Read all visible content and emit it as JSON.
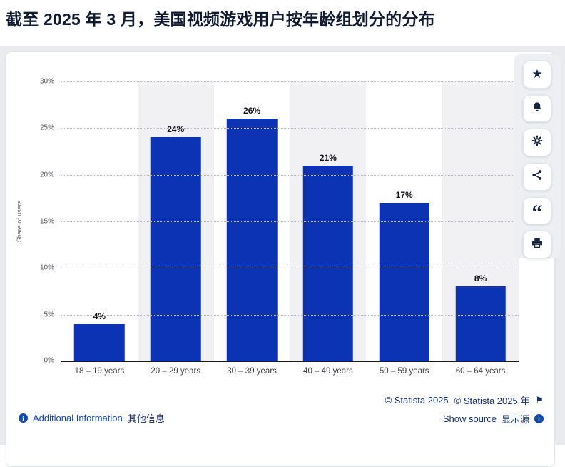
{
  "page": {
    "title": "截至 2025 年 3 月，美国视频游戏用户按年龄组划分的分布"
  },
  "chart_data": {
    "type": "bar",
    "title": "截至 2025 年 3 月，美国视频游戏用户按年龄组划分的分布",
    "categories": [
      "18 – 19 years",
      "20 – 29 years",
      "30 – 39 years",
      "40 – 49 years",
      "50 – 59 years",
      "60 – 64 years"
    ],
    "values": [
      4,
      24,
      26,
      21,
      17,
      8
    ],
    "value_labels": [
      "4%",
      "24%",
      "26%",
      "21%",
      "17%",
      "8%"
    ],
    "xlabel": "",
    "ylabel": "Share of users",
    "ylim": [
      0,
      30
    ],
    "ytick_labels": [
      "0%",
      "5%",
      "10%",
      "15%",
      "20%",
      "25%",
      "30%"
    ],
    "grid": "horizontal-dotted",
    "legend": "none",
    "bar_color": "#0d33b5",
    "band_color": "#f1f1f4"
  },
  "toolbar": {
    "buttons": [
      {
        "name": "favorite-button",
        "icon": "star-icon"
      },
      {
        "name": "notification-button",
        "icon": "bell-icon"
      },
      {
        "name": "settings-button",
        "icon": "gear-icon"
      },
      {
        "name": "share-button",
        "icon": "share-icon"
      },
      {
        "name": "cite-button",
        "icon": "quote-icon"
      },
      {
        "name": "print-button",
        "icon": "print-icon"
      }
    ]
  },
  "footer": {
    "additional_info_en": "Additional Information",
    "additional_info_zh": "其他信息",
    "copyright_en": "© Statista 2025",
    "copyright_zh": "© Statista 2025 年",
    "show_source_en": "Show source",
    "show_source_zh": "显示源"
  }
}
